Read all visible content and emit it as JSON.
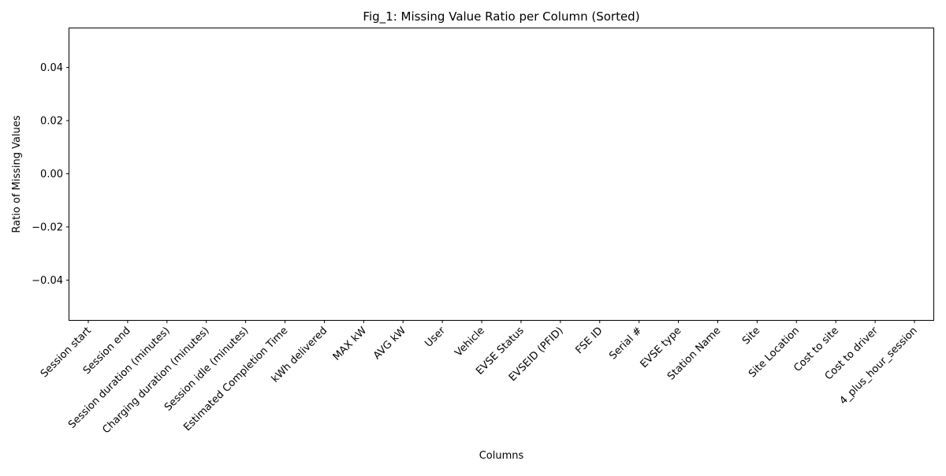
{
  "chart_data": {
    "type": "bar",
    "title": "Fig_1: Missing Value Ratio per Column (Sorted)",
    "xlabel": "Columns",
    "ylabel": "Ratio of Missing Values",
    "ylim": [
      -0.055,
      0.055
    ],
    "yticks": [
      -0.04,
      -0.02,
      0.0,
      0.02,
      0.04
    ],
    "ytick_labels": [
      "−0.04",
      "−0.02",
      "0.00",
      "0.02",
      "0.04"
    ],
    "grid": false,
    "legend": "none",
    "categories": [
      "Session start",
      "Session end",
      "Session duration (minutes)",
      "Charging duration (minutes)",
      "Session idle (minutes)",
      "Estimated Completion Time",
      "kWh delivered",
      "MAX kW",
      "AVG kW",
      "User",
      "Vehicle",
      "EVSE Status",
      "EVSEID (PFID)",
      "FSE ID",
      "Serial #",
      "EVSE type",
      "Station Name",
      "Site",
      "Site Location",
      "Cost to site",
      "Cost to driver",
      "4_plus_hour_session"
    ],
    "values": [
      0,
      0,
      0,
      0,
      0,
      0,
      0,
      0,
      0,
      0,
      0,
      0,
      0,
      0,
      0,
      0,
      0,
      0,
      0,
      0,
      0,
      0
    ],
    "bar_color": "#1f77b4"
  }
}
